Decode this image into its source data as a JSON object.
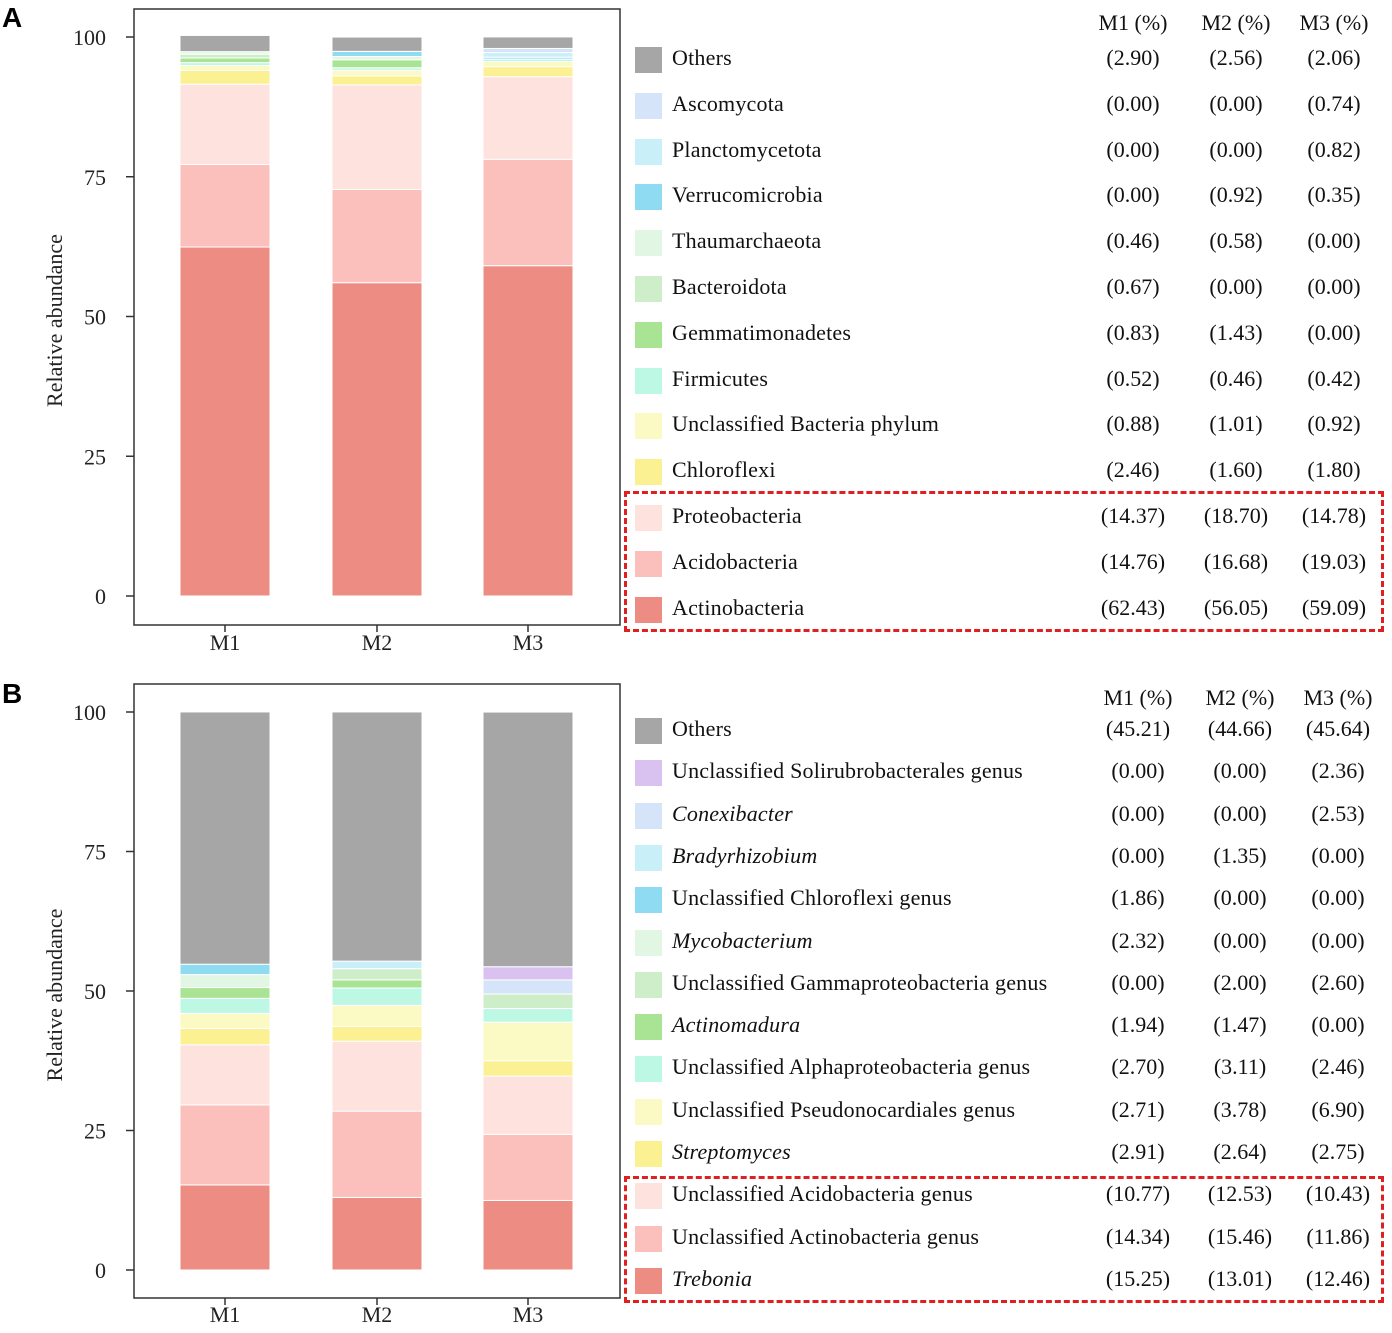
{
  "figure": {
    "panels": [
      {
        "letter": "A",
        "column_headers": [
          "M1 (%)",
          "M2 (%)",
          "M3 (%)"
        ],
        "legend": [
          {
            "label": "Others",
            "color": "#a6a6a6",
            "italic": false,
            "values": [
              "(2.90)",
              "(2.56)",
              "(2.06)"
            ]
          },
          {
            "label": "Ascomycota",
            "color": "#d6e4f9",
            "italic": false,
            "values": [
              "(0.00)",
              "(0.00)",
              "(0.74)"
            ]
          },
          {
            "label": "Planctomycetota",
            "color": "#c9eff9",
            "italic": false,
            "values": [
              "(0.00)",
              "(0.00)",
              "(0.82)"
            ]
          },
          {
            "label": "Verrucomicrobia",
            "color": "#8fdcf2",
            "italic": false,
            "values": [
              "(0.00)",
              "(0.92)",
              "(0.35)"
            ]
          },
          {
            "label": "Thaumarchaeota",
            "color": "#e2f7e3",
            "italic": false,
            "values": [
              "(0.46)",
              "(0.58)",
              "(0.00)"
            ]
          },
          {
            "label": "Bacteroidota",
            "color": "#cdeec8",
            "italic": false,
            "values": [
              "(0.67)",
              "(0.00)",
              "(0.00)"
            ]
          },
          {
            "label": "Gemmatimonadetes",
            "color": "#a9e495",
            "italic": false,
            "values": [
              "(0.83)",
              "(1.43)",
              "(0.00)"
            ]
          },
          {
            "label": "Firmicutes",
            "color": "#bdf8e4",
            "italic": false,
            "values": [
              "(0.52)",
              "(0.46)",
              "(0.42)"
            ]
          },
          {
            "label": "Unclassified Bacteria phylum",
            "color": "#fbf9c4",
            "italic": false,
            "values": [
              "(0.88)",
              "(1.01)",
              "(0.92)"
            ]
          },
          {
            "label": "Chloroflexi",
            "color": "#fbf092",
            "italic": false,
            "values": [
              "(2.46)",
              "(1.60)",
              "(1.80)"
            ]
          },
          {
            "label": "Proteobacteria",
            "color": "#fde2dd",
            "italic": false,
            "values": [
              "(14.37)",
              "(18.70)",
              "(14.78)"
            ]
          },
          {
            "label": "Acidobacteria",
            "color": "#fbc0bc",
            "italic": false,
            "values": [
              "(14.76)",
              "(16.68)",
              "(19.03)"
            ]
          },
          {
            "label": "Actinobacteria",
            "color": "#ed8c82",
            "italic": false,
            "values": [
              "(62.43)",
              "(56.05)",
              "(59.09)"
            ]
          }
        ]
      },
      {
        "letter": "B",
        "column_headers": [
          "M1 (%)",
          "M2 (%)",
          "M3 (%)"
        ],
        "legend": [
          {
            "label": "Others",
            "color": "#a6a6a6",
            "italic": false,
            "values": [
              "(45.21)",
              "(44.66)",
              "(45.64)"
            ]
          },
          {
            "label": "Unclassified Solirubrobacterales genus",
            "color": "#d9c2ef",
            "italic": false,
            "values": [
              "(0.00)",
              "(0.00)",
              "(2.36)"
            ]
          },
          {
            "label": "Conexibacter",
            "color": "#d6e4f9",
            "italic": true,
            "values": [
              "(0.00)",
              "(0.00)",
              "(2.53)"
            ]
          },
          {
            "label": "Bradyrhizobium",
            "color": "#c9eff9",
            "italic": true,
            "values": [
              "(0.00)",
              "(1.35)",
              "(0.00)"
            ]
          },
          {
            "label": "Unclassified Chloroflexi genus",
            "color": "#8fdcf2",
            "italic": false,
            "values": [
              "(1.86)",
              "(0.00)",
              "(0.00)"
            ]
          },
          {
            "label": "Mycobacterium",
            "color": "#e2f7e3",
            "italic": true,
            "values": [
              "(2.32)",
              "(0.00)",
              "(0.00)"
            ]
          },
          {
            "label": "Unclassified Gammaproteobacteria genus",
            "color": "#cdeec8",
            "italic": false,
            "values": [
              "(0.00)",
              "(2.00)",
              "(2.60)"
            ]
          },
          {
            "label": "Actinomadura",
            "color": "#a9e495",
            "italic": true,
            "values": [
              "(1.94)",
              "(1.47)",
              "(0.00)"
            ]
          },
          {
            "label": "Unclassified Alphaproteobacteria genus",
            "color": "#bdf8e4",
            "italic": false,
            "values": [
              "(2.70)",
              "(3.11)",
              "(2.46)"
            ]
          },
          {
            "label": "Unclassified Pseudonocardiales genus",
            "color": "#fbf9c4",
            "italic": false,
            "values": [
              "(2.71)",
              "(3.78)",
              "(6.90)"
            ]
          },
          {
            "label": "Streptomyces",
            "color": "#fbf092",
            "italic": true,
            "values": [
              "(2.91)",
              "(2.64)",
              "(2.75)"
            ]
          },
          {
            "label": "Unclassified Acidobacteria genus",
            "color": "#fde2dd",
            "italic": false,
            "values": [
              "(10.77)",
              "(12.53)",
              "(10.43)"
            ]
          },
          {
            "label": "Unclassified Actinobacteria genus",
            "color": "#fbc0bc",
            "italic": false,
            "values": [
              "(14.34)",
              "(15.46)",
              "(11.86)"
            ]
          },
          {
            "label": "Trebonia",
            "color": "#ed8c82",
            "italic": true,
            "values": [
              "(15.25)",
              "(13.01)",
              "(12.46)"
            ]
          }
        ]
      }
    ]
  },
  "chart_data": [
    {
      "type": "bar",
      "stacked": true,
      "panel": "A",
      "title": "",
      "xlabel": "",
      "ylabel": "Relative abundance",
      "ylim": [
        0,
        100
      ],
      "yticks": [
        0,
        25,
        50,
        75,
        100
      ],
      "categories": [
        "M1",
        "M2",
        "M3"
      ],
      "series": [
        {
          "name": "Actinobacteria",
          "color": "#ed8c82",
          "values": [
            62.43,
            56.05,
            59.09
          ]
        },
        {
          "name": "Acidobacteria",
          "color": "#fbc0bc",
          "values": [
            14.76,
            16.68,
            19.03
          ]
        },
        {
          "name": "Proteobacteria",
          "color": "#fde2dd",
          "values": [
            14.37,
            18.7,
            14.78
          ]
        },
        {
          "name": "Chloroflexi",
          "color": "#fbf092",
          "values": [
            2.46,
            1.6,
            1.8
          ]
        },
        {
          "name": "Unclassified Bacteria phylum",
          "color": "#fbf9c4",
          "values": [
            0.88,
            1.01,
            0.92
          ]
        },
        {
          "name": "Firmicutes",
          "color": "#bdf8e4",
          "values": [
            0.52,
            0.46,
            0.42
          ]
        },
        {
          "name": "Gemmatimonadetes",
          "color": "#a9e495",
          "values": [
            0.83,
            1.43,
            0.0
          ]
        },
        {
          "name": "Bacteroidota",
          "color": "#cdeec8",
          "values": [
            0.67,
            0.0,
            0.0
          ]
        },
        {
          "name": "Thaumarchaeota",
          "color": "#e2f7e3",
          "values": [
            0.46,
            0.58,
            0.0
          ]
        },
        {
          "name": "Verrucomicrobia",
          "color": "#8fdcf2",
          "values": [
            0.0,
            0.92,
            0.35
          ]
        },
        {
          "name": "Planctomycetota",
          "color": "#c9eff9",
          "values": [
            0.0,
            0.0,
            0.82
          ]
        },
        {
          "name": "Ascomycota",
          "color": "#d6e4f9",
          "values": [
            0.0,
            0.0,
            0.74
          ]
        },
        {
          "name": "Others",
          "color": "#a6a6a6",
          "values": [
            2.9,
            2.56,
            2.06
          ]
        }
      ]
    },
    {
      "type": "bar",
      "stacked": true,
      "panel": "B",
      "title": "",
      "xlabel": "",
      "ylabel": "Relative abundance",
      "ylim": [
        0,
        100
      ],
      "yticks": [
        0,
        25,
        50,
        75,
        100
      ],
      "categories": [
        "M1",
        "M2",
        "M3"
      ],
      "series": [
        {
          "name": "Trebonia",
          "color": "#ed8c82",
          "values": [
            15.25,
            13.01,
            12.46
          ]
        },
        {
          "name": "Unclassified Actinobacteria genus",
          "color": "#fbc0bc",
          "values": [
            14.34,
            15.46,
            11.86
          ]
        },
        {
          "name": "Unclassified Acidobacteria genus",
          "color": "#fde2dd",
          "values": [
            10.77,
            12.53,
            10.43
          ]
        },
        {
          "name": "Streptomyces",
          "color": "#fbf092",
          "values": [
            2.91,
            2.64,
            2.75
          ]
        },
        {
          "name": "Unclassified Pseudonocardiales genus",
          "color": "#fbf9c4",
          "values": [
            2.71,
            3.78,
            6.9
          ]
        },
        {
          "name": "Unclassified Alphaproteobacteria genus",
          "color": "#bdf8e4",
          "values": [
            2.7,
            3.11,
            2.46
          ]
        },
        {
          "name": "Actinomadura",
          "color": "#a9e495",
          "values": [
            1.94,
            1.47,
            0.0
          ]
        },
        {
          "name": "Unclassified Gammaproteobacteria genus",
          "color": "#cdeec8",
          "values": [
            0.0,
            2.0,
            2.6
          ]
        },
        {
          "name": "Mycobacterium",
          "color": "#e2f7e3",
          "values": [
            2.32,
            0.0,
            0.0
          ]
        },
        {
          "name": "Unclassified Chloroflexi genus",
          "color": "#8fdcf2",
          "values": [
            1.86,
            0.0,
            0.0
          ]
        },
        {
          "name": "Bradyrhizobium",
          "color": "#c9eff9",
          "values": [
            0.0,
            1.35,
            0.0
          ]
        },
        {
          "name": "Conexibacter",
          "color": "#d6e4f9",
          "values": [
            0.0,
            0.0,
            2.53
          ]
        },
        {
          "name": "Unclassified Solirubrobacterales genus",
          "color": "#d9c2ef",
          "values": [
            0.0,
            0.0,
            2.36
          ]
        },
        {
          "name": "Others",
          "color": "#a6a6a6",
          "values": [
            45.21,
            44.66,
            45.64
          ]
        }
      ]
    }
  ]
}
